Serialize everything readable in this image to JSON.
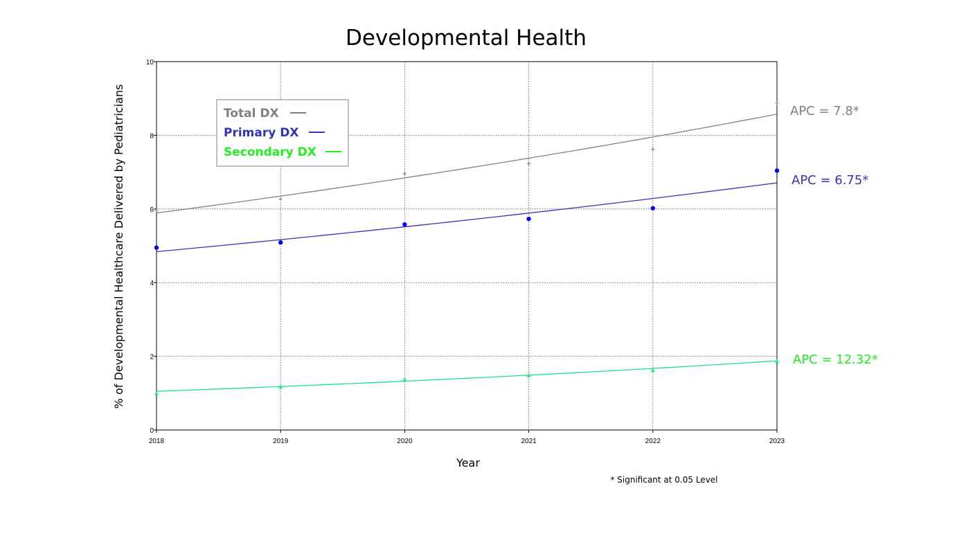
{
  "chart_data": {
    "type": "line",
    "title": "Developmental Health",
    "xlabel": "Year",
    "ylabel": "% of Developmental Healthcare Delivered by Pediatricians",
    "x": [
      2018,
      2019,
      2020,
      2021,
      2022,
      2023
    ],
    "x_ticks": [
      "2018",
      "2019",
      "2020",
      "2021",
      "2022",
      "2023"
    ],
    "xlim": [
      2018,
      2023
    ],
    "ylim": [
      0,
      10
    ],
    "y_ticks": [
      "0",
      "2",
      "4",
      "6",
      "8",
      "10"
    ],
    "grid": true,
    "legend_position": "top-left",
    "series": [
      {
        "name": "Total DX",
        "color": "#808080",
        "marker": "plus",
        "observed": [
          5.96,
          6.27,
          6.96,
          7.23,
          7.62,
          8.88
        ],
        "fitted_start": 5.89,
        "apc": 7.8,
        "apc_label": "APC = 7.8*"
      },
      {
        "name": "Primary DX",
        "color": "#3333bb",
        "marker_color": "#0000ee",
        "marker": "circle",
        "observed": [
          4.95,
          5.09,
          5.58,
          5.73,
          6.02,
          7.04
        ],
        "fitted_start": 4.84,
        "apc": 6.75,
        "apc_label": "APC = 6.75*"
      },
      {
        "name": "Secondary DX",
        "color": "#22dd88",
        "marker_color": "#22ee88",
        "text_color": "#22ee22",
        "marker": "triangle",
        "observed": [
          0.99,
          1.17,
          1.37,
          1.48,
          1.62,
          1.86
        ],
        "fitted_start": 1.05,
        "apc": 12.32,
        "apc_label": "APC = 12.32*"
      }
    ],
    "footnote": "* Significant at 0.05 Level"
  }
}
